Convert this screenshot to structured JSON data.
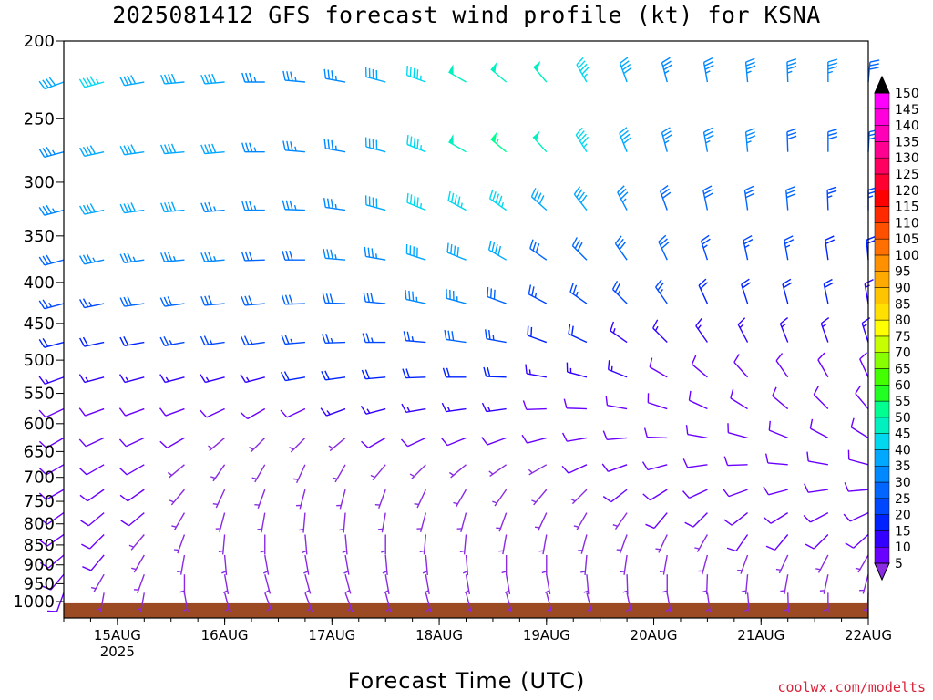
{
  "chart_data": {
    "type": "wind_barb_profile",
    "title": "2025081412 GFS forecast wind profile (kt) for KSNA",
    "xlabel": "Forecast Time (UTC)",
    "credit": "coolwx.com/modelts",
    "y_ticks": [
      200,
      250,
      300,
      350,
      400,
      450,
      500,
      550,
      600,
      650,
      700,
      750,
      800,
      850,
      900,
      950,
      1000
    ],
    "y_range": [
      1040,
      200
    ],
    "y_scale": "log-pressure (hPa, inverted)",
    "x_ticks": [
      "15AUG",
      "16AUG",
      "17AUG",
      "18AUG",
      "19AUG",
      "20AUG",
      "21AUG",
      "22AUG"
    ],
    "x_year_label": "2025",
    "x_range_days": [
      14.5,
      22.0
    ],
    "surface": {
      "color": "#9c4a23",
      "pressure_hpa": 1005
    },
    "colorbar": {
      "values": [
        5,
        10,
        15,
        20,
        25,
        30,
        35,
        40,
        45,
        50,
        55,
        60,
        65,
        70,
        75,
        80,
        85,
        90,
        95,
        100,
        105,
        110,
        115,
        120,
        125,
        130,
        135,
        140,
        145,
        150
      ],
      "colors": [
        "#8a2be2",
        "#6a00ff",
        "#3300ff",
        "#0022ff",
        "#0048ff",
        "#0066ff",
        "#0088ff",
        "#00a8ff",
        "#00d8f0",
        "#00f0c0",
        "#00ff90",
        "#22ff22",
        "#44ff00",
        "#88ff00",
        "#c8ff00",
        "#ffff00",
        "#ffe000",
        "#ffc400",
        "#ffaa00",
        "#ff9000",
        "#ff7000",
        "#ff5000",
        "#ff2a00",
        "#ff0000",
        "#ff0030",
        "#ff0060",
        "#ff0090",
        "#ff00b8",
        "#ff00dd",
        "#ff00ff"
      ]
    },
    "levels_hpa": [
      225,
      275,
      325,
      375,
      425,
      475,
      525,
      575,
      625,
      675,
      725,
      775,
      825,
      875,
      925,
      975,
      1000
    ],
    "columns": [
      {
        "t": 14.5,
        "spd": [
          40,
          35,
          35,
          30,
          25,
          20,
          15,
          10,
          10,
          10,
          10,
          10,
          10,
          10,
          10,
          10,
          5
        ],
        "dir": [
          250,
          255,
          255,
          255,
          255,
          255,
          250,
          245,
          240,
          240,
          240,
          235,
          235,
          230,
          220,
          200,
          180
        ]
      },
      {
        "t": 14.875,
        "spd": [
          45,
          40,
          40,
          35,
          25,
          20,
          15,
          10,
          10,
          10,
          10,
          10,
          10,
          10,
          5,
          5,
          5
        ],
        "dir": [
          255,
          258,
          258,
          258,
          258,
          258,
          255,
          250,
          245,
          240,
          235,
          230,
          225,
          220,
          210,
          190,
          180
        ]
      },
      {
        "t": 15.25,
        "spd": [
          40,
          40,
          40,
          35,
          30,
          20,
          15,
          10,
          10,
          10,
          10,
          10,
          5,
          5,
          5,
          5,
          5
        ],
        "dir": [
          260,
          262,
          262,
          262,
          262,
          260,
          255,
          250,
          245,
          240,
          235,
          230,
          220,
          210,
          200,
          190,
          180
        ]
      },
      {
        "t": 15.625,
        "spd": [
          40,
          40,
          40,
          35,
          30,
          25,
          15,
          10,
          10,
          5,
          5,
          5,
          5,
          5,
          5,
          5,
          5
        ],
        "dir": [
          265,
          265,
          265,
          265,
          262,
          260,
          255,
          250,
          240,
          230,
          220,
          210,
          200,
          190,
          180,
          170,
          170
        ]
      },
      {
        "t": 16.0,
        "spd": [
          40,
          40,
          35,
          35,
          30,
          25,
          15,
          10,
          5,
          5,
          5,
          5,
          5,
          5,
          5,
          5,
          5
        ],
        "dir": [
          265,
          265,
          265,
          265,
          265,
          262,
          255,
          245,
          230,
          215,
          205,
          195,
          185,
          175,
          170,
          165,
          165
        ]
      },
      {
        "t": 16.375,
        "spd": [
          35,
          35,
          35,
          30,
          30,
          25,
          15,
          10,
          5,
          5,
          5,
          5,
          5,
          5,
          5,
          5,
          5
        ],
        "dir": [
          270,
          270,
          270,
          268,
          265,
          262,
          255,
          240,
          225,
          210,
          200,
          190,
          180,
          170,
          165,
          160,
          160
        ]
      },
      {
        "t": 16.75,
        "spd": [
          35,
          35,
          35,
          30,
          30,
          25,
          20,
          10,
          5,
          5,
          5,
          5,
          5,
          5,
          5,
          5,
          5
        ],
        "dir": [
          275,
          275,
          272,
          270,
          268,
          265,
          260,
          245,
          225,
          205,
          195,
          185,
          175,
          170,
          165,
          160,
          160
        ]
      },
      {
        "t": 17.125,
        "spd": [
          35,
          35,
          35,
          35,
          30,
          25,
          20,
          15,
          5,
          5,
          5,
          5,
          5,
          5,
          5,
          5,
          5
        ],
        "dir": [
          280,
          280,
          278,
          275,
          272,
          268,
          262,
          250,
          230,
          210,
          195,
          185,
          175,
          170,
          165,
          160,
          160
        ]
      },
      {
        "t": 17.5,
        "spd": [
          40,
          40,
          40,
          35,
          30,
          25,
          20,
          15,
          10,
          5,
          5,
          5,
          5,
          5,
          5,
          5,
          5
        ],
        "dir": [
          285,
          285,
          285,
          280,
          275,
          270,
          265,
          255,
          240,
          220,
          200,
          190,
          180,
          175,
          170,
          165,
          160
        ]
      },
      {
        "t": 17.875,
        "spd": [
          45,
          45,
          45,
          40,
          35,
          25,
          20,
          15,
          10,
          5,
          5,
          5,
          5,
          5,
          5,
          5,
          5
        ],
        "dir": [
          290,
          292,
          292,
          288,
          282,
          275,
          268,
          260,
          245,
          225,
          205,
          195,
          185,
          175,
          170,
          165,
          160
        ]
      },
      {
        "t": 18.25,
        "spd": [
          50,
          50,
          45,
          40,
          35,
          30,
          20,
          15,
          10,
          5,
          5,
          5,
          5,
          5,
          5,
          5,
          5
        ],
        "dir": [
          300,
          300,
          298,
          292,
          285,
          278,
          270,
          262,
          248,
          230,
          210,
          195,
          185,
          175,
          170,
          165,
          160
        ]
      },
      {
        "t": 18.625,
        "spd": [
          50,
          55,
          45,
          40,
          30,
          25,
          20,
          15,
          10,
          5,
          5,
          5,
          5,
          5,
          5,
          5,
          5
        ],
        "dir": [
          310,
          310,
          305,
          300,
          290,
          280,
          272,
          262,
          250,
          235,
          215,
          200,
          190,
          180,
          170,
          165,
          160
        ]
      },
      {
        "t": 19.0,
        "spd": [
          50,
          50,
          40,
          30,
          25,
          20,
          15,
          10,
          10,
          5,
          5,
          5,
          5,
          5,
          5,
          5,
          5
        ],
        "dir": [
          320,
          318,
          312,
          305,
          298,
          290,
          280,
          268,
          255,
          240,
          220,
          205,
          190,
          180,
          170,
          165,
          160
        ]
      },
      {
        "t": 19.375,
        "spd": [
          45,
          45,
          40,
          30,
          25,
          20,
          15,
          10,
          10,
          10,
          5,
          5,
          5,
          5,
          5,
          5,
          5
        ],
        "dir": [
          330,
          328,
          322,
          315,
          305,
          295,
          285,
          272,
          260,
          245,
          225,
          210,
          195,
          185,
          175,
          165,
          160
        ]
      },
      {
        "t": 19.75,
        "spd": [
          40,
          40,
          35,
          30,
          25,
          15,
          15,
          10,
          10,
          10,
          10,
          5,
          5,
          5,
          5,
          5,
          5
        ],
        "dir": [
          340,
          338,
          332,
          325,
          315,
          305,
          292,
          280,
          265,
          250,
          232,
          215,
          200,
          188,
          178,
          168,
          160
        ]
      },
      {
        "t": 20.125,
        "spd": [
          35,
          35,
          30,
          30,
          25,
          15,
          10,
          10,
          10,
          10,
          10,
          10,
          5,
          5,
          5,
          5,
          5
        ],
        "dir": [
          345,
          345,
          340,
          335,
          325,
          315,
          300,
          288,
          272,
          255,
          238,
          220,
          205,
          190,
          180,
          170,
          160
        ]
      },
      {
        "t": 20.5,
        "spd": [
          35,
          35,
          30,
          25,
          20,
          15,
          10,
          10,
          10,
          10,
          10,
          10,
          5,
          5,
          5,
          5,
          5
        ],
        "dir": [
          350,
          350,
          348,
          342,
          335,
          325,
          310,
          295,
          280,
          262,
          245,
          225,
          210,
          195,
          182,
          172,
          165
        ]
      },
      {
        "t": 20.875,
        "spd": [
          35,
          35,
          30,
          25,
          20,
          15,
          10,
          10,
          10,
          10,
          10,
          10,
          10,
          5,
          5,
          5,
          5
        ],
        "dir": [
          355,
          355,
          352,
          348,
          342,
          332,
          318,
          302,
          285,
          268,
          250,
          232,
          215,
          200,
          185,
          175,
          165
        ]
      },
      {
        "t": 21.25,
        "spd": [
          35,
          30,
          30,
          25,
          20,
          15,
          10,
          10,
          10,
          10,
          10,
          10,
          10,
          5,
          5,
          5,
          5
        ],
        "dir": [
          358,
          358,
          355,
          350,
          345,
          338,
          325,
          310,
          292,
          275,
          255,
          238,
          220,
          205,
          190,
          178,
          168
        ]
      },
      {
        "t": 21.625,
        "spd": [
          35,
          30,
          25,
          20,
          20,
          15,
          10,
          10,
          10,
          10,
          10,
          10,
          10,
          5,
          5,
          5,
          5
        ],
        "dir": [
          0,
          0,
          358,
          352,
          348,
          340,
          330,
          315,
          298,
          280,
          262,
          242,
          225,
          208,
          192,
          180,
          170
        ]
      },
      {
        "t": 22.0,
        "spd": [
          30,
          30,
          25,
          20,
          15,
          15,
          10,
          10,
          10,
          10,
          10,
          10,
          10,
          5,
          5,
          5,
          5
        ],
        "dir": [
          5,
          3,
          0,
          355,
          350,
          342,
          335,
          320,
          302,
          285,
          265,
          245,
          228,
          210,
          195,
          182,
          172
        ]
      }
    ]
  }
}
